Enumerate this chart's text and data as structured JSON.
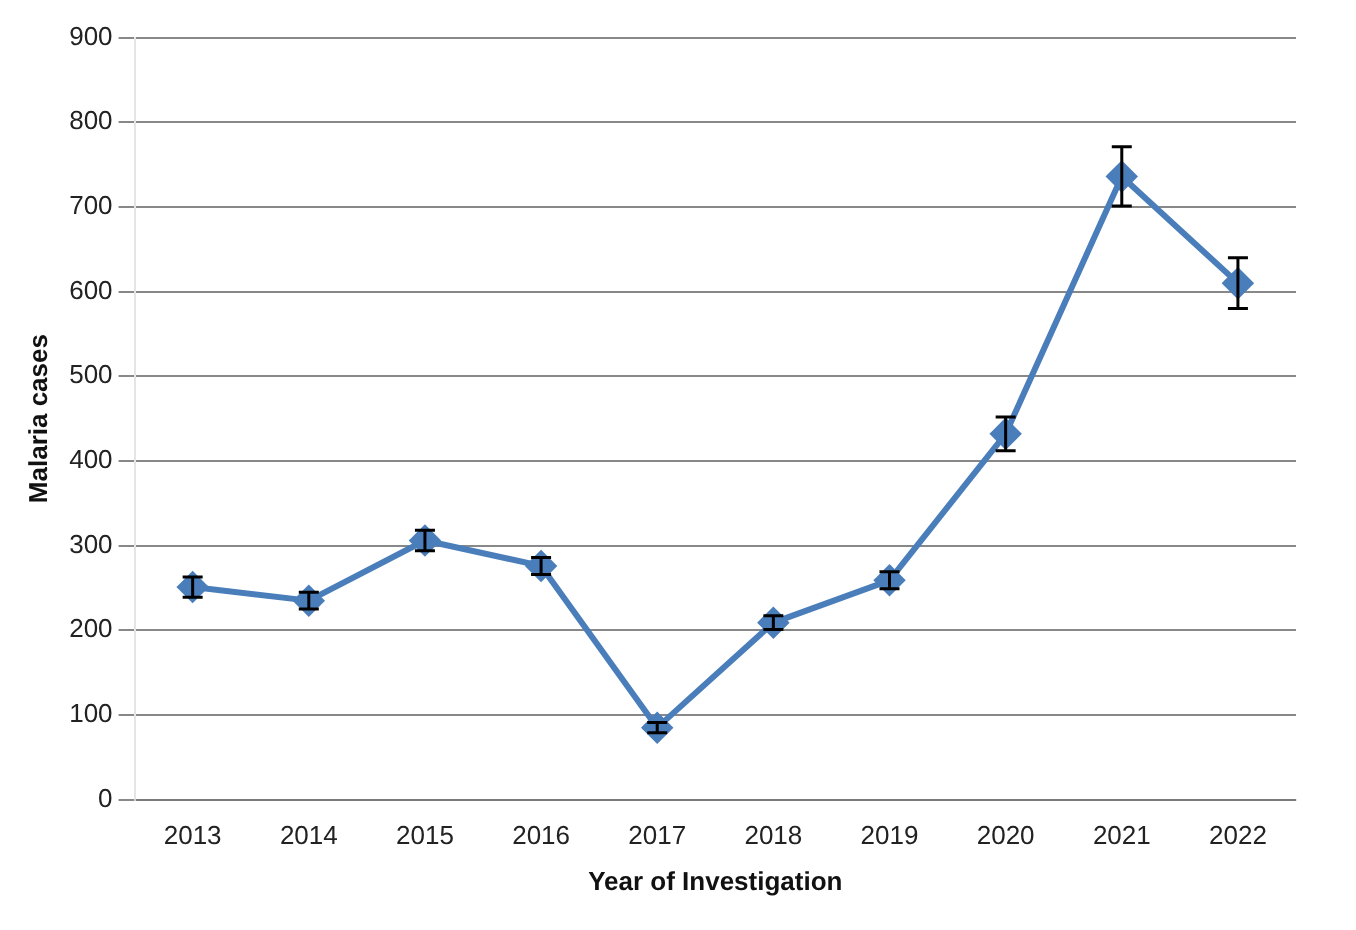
{
  "chart_data": {
    "type": "line",
    "xlabel": "Year of Investigation",
    "ylabel": "Malaria cases",
    "categories": [
      "2013",
      "2014",
      "2015",
      "2016",
      "2017",
      "2018",
      "2019",
      "2020",
      "2021",
      "2022"
    ],
    "series": [
      {
        "color": "#4a7ebb",
        "values": [
          251,
          235,
          306,
          276,
          85,
          209,
          259,
          432,
          736,
          610
        ],
        "errors": [
          12,
          10,
          12,
          10,
          6,
          8,
          10,
          20,
          35,
          30
        ]
      }
    ],
    "ylim": [
      0,
      900
    ],
    "yticks": [
      0,
      100,
      200,
      300,
      400,
      500,
      600,
      700,
      800,
      900
    ],
    "grid": "y",
    "legend": false,
    "marker": "diamond",
    "line_style": "solid"
  }
}
